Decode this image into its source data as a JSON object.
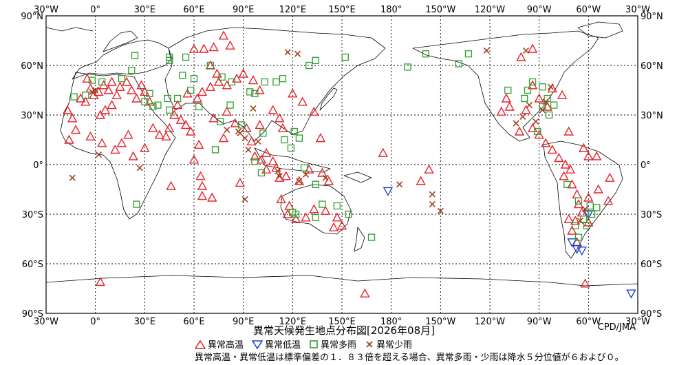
{
  "chart_data": {
    "type": "scatter",
    "title": "異常天候発生地点分布図[2026年08月]",
    "credit": "CPD/JMA",
    "note": "異常高温・異常低温は標準偏差の１．８３倍を超える場合、異常多雨・少雨は降水５分位値が６および０。",
    "x_ticks": [
      "30°W",
      "0°",
      "30°E",
      "60°E",
      "90°E",
      "120°E",
      "150°E",
      "180°",
      "150°W",
      "120°W",
      "90°W",
      "60°W",
      "30°W"
    ],
    "y_ticks": [
      "90°N",
      "60°N",
      "30°N",
      "0°",
      "30°S",
      "60°S",
      "90°S"
    ],
    "lon_range": [
      -30,
      330
    ],
    "lat_range": [
      -90,
      90
    ],
    "grid": true,
    "legend": [
      {
        "key": "hot",
        "label": "異常高温",
        "marker": "triangle-up",
        "color": "#e8202a"
      },
      {
        "key": "cold",
        "label": "異常低温",
        "marker": "triangle-down",
        "color": "#1f3fd6"
      },
      {
        "key": "wet",
        "label": "異常多雨",
        "marker": "square",
        "color": "#2e9e2e"
      },
      {
        "key": "dry",
        "label": "異常少雨",
        "marker": "x",
        "color": "#a0401a"
      }
    ],
    "series": [
      {
        "name": "異常高温",
        "key": "hot",
        "points": [
          [
            -17,
            33
          ],
          [
            -14,
            28
          ],
          [
            -12,
            21
          ],
          [
            -16,
            15
          ],
          [
            -9,
            40
          ],
          [
            -5,
            52
          ],
          [
            -3,
            46
          ],
          [
            -6,
            38
          ],
          [
            -1,
            42
          ],
          [
            2,
            44
          ],
          [
            5,
            48
          ],
          [
            8,
            45
          ],
          [
            10,
            50
          ],
          [
            13,
            42
          ],
          [
            15,
            47
          ],
          [
            19,
            50
          ],
          [
            22,
            45
          ],
          [
            25,
            40
          ],
          [
            28,
            48
          ],
          [
            30,
            44
          ],
          [
            33,
            38
          ],
          [
            3,
            30
          ],
          [
            6,
            33
          ],
          [
            10,
            36
          ],
          [
            -3,
            17
          ],
          [
            4,
            13
          ],
          [
            12,
            9
          ],
          [
            16,
            13
          ],
          [
            20,
            18
          ],
          [
            23,
            5
          ],
          [
            30,
            10
          ],
          [
            35,
            22
          ],
          [
            39,
            18
          ],
          [
            43,
            17
          ],
          [
            45,
            22
          ],
          [
            48,
            30
          ],
          [
            52,
            27
          ],
          [
            55,
            24
          ],
          [
            58,
            20
          ],
          [
            63,
            12
          ],
          [
            60,
            3
          ],
          [
            64,
            -7
          ],
          [
            65,
            -13
          ],
          [
            65,
            -19
          ],
          [
            71,
            -20
          ],
          [
            46,
            -13
          ],
          [
            50,
            36
          ],
          [
            56,
            43
          ],
          [
            62,
            40
          ],
          [
            65,
            44
          ],
          [
            70,
            47
          ],
          [
            75,
            50
          ],
          [
            78,
            78
          ],
          [
            72,
            71
          ],
          [
            82,
            72
          ],
          [
            60,
            70
          ],
          [
            66,
            70
          ],
          [
            70,
            60
          ],
          [
            74,
            55
          ],
          [
            80,
            48
          ],
          [
            86,
            52
          ],
          [
            90,
            55
          ],
          [
            96,
            51
          ],
          [
            100,
            45
          ],
          [
            72,
            28
          ],
          [
            80,
            32
          ],
          [
            85,
            25
          ],
          [
            78,
            16
          ],
          [
            92,
            22
          ],
          [
            100,
            24
          ],
          [
            95,
            14
          ],
          [
            97,
            5
          ],
          [
            101,
            3
          ],
          [
            104,
            7
          ],
          [
            108,
            2
          ],
          [
            110,
            -2
          ],
          [
            104,
            -3
          ],
          [
            112,
            -8
          ],
          [
            116,
            -7
          ],
          [
            124,
            -10
          ],
          [
            130,
            -3
          ],
          [
            138,
            -5
          ],
          [
            142,
            -10
          ],
          [
            113,
            -21
          ],
          [
            118,
            -25
          ],
          [
            122,
            -33
          ],
          [
            128,
            -32
          ],
          [
            117,
            -30
          ],
          [
            133,
            -27
          ],
          [
            140,
            -28
          ],
          [
            147,
            -32
          ],
          [
            145,
            -38
          ],
          [
            150,
            -37
          ],
          [
            137,
            16
          ],
          [
            133,
            32
          ],
          [
            126,
            38
          ],
          [
            120,
            43
          ],
          [
            112,
            28
          ],
          [
            108,
            33
          ],
          [
            114,
            22
          ],
          [
            88,
            -11
          ],
          [
            175,
            7
          ],
          [
            198,
            -10
          ],
          [
            164,
            -78
          ],
          [
            3,
            -71
          ],
          [
            203,
            -3
          ],
          [
            266,
            22
          ],
          [
            270,
            18
          ],
          [
            274,
            13
          ],
          [
            278,
            9
          ],
          [
            282,
            4
          ],
          [
            286,
            0
          ],
          [
            289,
            -3
          ],
          [
            285,
            -7
          ],
          [
            290,
            -12
          ],
          [
            293,
            -18
          ],
          [
            294,
            -24
          ],
          [
            296,
            -29
          ],
          [
            292,
            -34
          ],
          [
            290,
            -40
          ],
          [
            300,
            -20
          ],
          [
            306,
            -15
          ],
          [
            313,
            -8
          ],
          [
            305,
            5
          ],
          [
            297,
            10
          ],
          [
            312,
            -22
          ],
          [
            300,
            -35
          ],
          [
            288,
            -33
          ],
          [
            293,
            -47
          ],
          [
            298,
            -72
          ],
          [
            258,
            20
          ],
          [
            247,
            32
          ],
          [
            252,
            35
          ],
          [
            262,
            33
          ],
          [
            270,
            40
          ],
          [
            266,
            48
          ],
          [
            259,
            65
          ],
          [
            266,
            70
          ],
          [
            278,
            46
          ],
          [
            284,
            42
          ],
          [
            275,
            35
          ],
          [
            288,
            20
          ],
          [
            250,
            40
          ],
          [
            300,
            5
          ]
        ]
      },
      {
        "name": "異常低温",
        "key": "cold",
        "points": [
          [
            178,
            -16
          ],
          [
            290,
            -47
          ],
          [
            293,
            -51
          ],
          [
            296,
            -52
          ],
          [
            300,
            -30
          ],
          [
            326,
            -78
          ]
        ]
      },
      {
        "name": "異常多雨",
        "key": "wet",
        "points": [
          [
            -13,
            41
          ],
          [
            -6,
            42
          ],
          [
            -2,
            51
          ],
          [
            4,
            50
          ],
          [
            16,
            52
          ],
          [
            22,
            57
          ],
          [
            24,
            66
          ],
          [
            45,
            65
          ],
          [
            45,
            63
          ],
          [
            44,
            40
          ],
          [
            55,
            65
          ],
          [
            53,
            54
          ],
          [
            58,
            45
          ],
          [
            60,
            52
          ],
          [
            70,
            60
          ],
          [
            77,
            53
          ],
          [
            83,
            50
          ],
          [
            94,
            44
          ],
          [
            103,
            50
          ],
          [
            110,
            50
          ],
          [
            114,
            52
          ],
          [
            130,
            60
          ],
          [
            134,
            63
          ],
          [
            152,
            65
          ],
          [
            190,
            59
          ],
          [
            201,
            67
          ],
          [
            221,
            61
          ],
          [
            227,
            67
          ],
          [
            251,
            45
          ],
          [
            261,
            40
          ],
          [
            263,
            45
          ],
          [
            266,
            50
          ],
          [
            272,
            47
          ],
          [
            275,
            40
          ],
          [
            279,
            36
          ],
          [
            272,
            35
          ],
          [
            276,
            30
          ],
          [
            269,
            20
          ],
          [
            287,
            -12
          ],
          [
            294,
            -22
          ],
          [
            301,
            -25
          ],
          [
            305,
            -26
          ],
          [
            302,
            -30
          ],
          [
            297,
            -33
          ],
          [
            292,
            -37
          ],
          [
            299,
            -37
          ],
          [
            294,
            -44
          ],
          [
            45,
            33
          ],
          [
            30,
            38
          ],
          [
            35,
            35
          ],
          [
            38,
            36
          ],
          [
            33,
            43
          ],
          [
            50,
            40
          ],
          [
            76,
            26
          ],
          [
            73,
            9
          ],
          [
            89,
            24
          ],
          [
            102,
            19
          ],
          [
            115,
            15
          ],
          [
            119,
            10
          ],
          [
            121,
            20
          ],
          [
            124,
            16
          ],
          [
            134,
            -12
          ],
          [
            138,
            -24
          ],
          [
            147,
            -25
          ],
          [
            120,
            -29
          ],
          [
            122,
            -30
          ],
          [
            154,
            -30
          ],
          [
            134,
            -32
          ],
          [
            168,
            -44
          ],
          [
            25,
            -24
          ],
          [
            101,
            -5
          ],
          [
            97,
            2
          ],
          [
            127,
            -2
          ],
          [
            63,
            35
          ],
          [
            82,
            36
          ],
          [
            97,
            43
          ]
        ]
      },
      {
        "name": "異常少雨",
        "key": "dry",
        "points": [
          [
            -14,
            -8
          ],
          [
            -2,
            44
          ],
          [
            0,
            45
          ],
          [
            2,
            6
          ],
          [
            27,
            -2
          ],
          [
            80,
            21
          ],
          [
            88,
            19
          ],
          [
            96,
            34
          ],
          [
            99,
            14
          ],
          [
            111,
            -4
          ],
          [
            112,
            -7
          ],
          [
            124,
            -10
          ],
          [
            128,
            -6
          ],
          [
            140,
            -8
          ],
          [
            93,
            9
          ],
          [
            91,
            -21
          ],
          [
            117,
            68
          ],
          [
            123,
            67
          ],
          [
            185,
            -12
          ],
          [
            205,
            -18
          ],
          [
            205,
            -24
          ],
          [
            210,
            -28
          ],
          [
            238,
            69
          ],
          [
            262,
            69
          ],
          [
            277,
            47
          ],
          [
            272,
            33
          ],
          [
            264,
            36
          ],
          [
            260,
            29
          ],
          [
            256,
            25
          ],
          [
            274,
            38
          ],
          [
            268,
            26
          ],
          [
            298,
            -27
          ],
          [
            295,
            -34
          ],
          [
            87,
            20
          ],
          [
            91,
            16
          ]
        ]
      }
    ]
  }
}
